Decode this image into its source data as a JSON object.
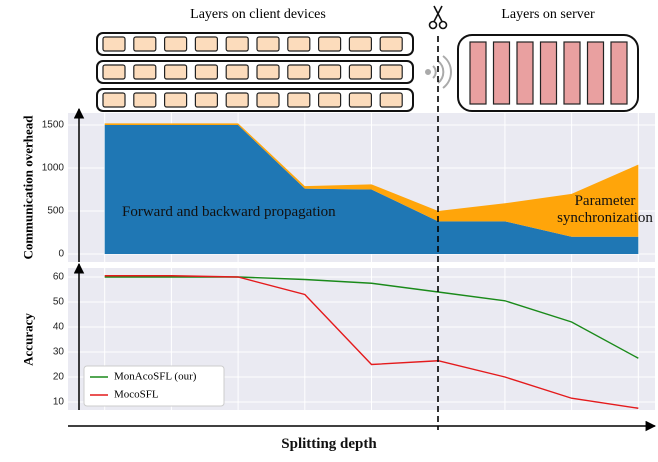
{
  "diagram": {
    "client_label": "Layers on client devices",
    "server_label": "Layers on server"
  },
  "chart_data": [
    {
      "type": "area",
      "stacked": true,
      "ylabel": "Communication overhead",
      "annotations": [
        "Forward and backward propagation",
        "Parameter synchronization"
      ],
      "x": [
        1,
        2,
        3,
        4,
        5,
        6,
        7,
        8,
        9
      ],
      "xlim": [
        0.45,
        9.25
      ],
      "ylim": [
        -93,
        1640
      ],
      "yticks": [
        0,
        500,
        1000,
        1500
      ],
      "grid": true,
      "series": [
        {
          "name": "Forward and backward propagation",
          "color": "#1f77b4",
          "values": [
            1500,
            1500,
            1500,
            760,
            750,
            380,
            380,
            200,
            200
          ]
        },
        {
          "name": "Parameter synchronization",
          "color": "#ffa50a",
          "values": [
            20,
            20,
            20,
            30,
            60,
            120,
            210,
            500,
            840
          ]
        }
      ]
    },
    {
      "type": "line",
      "ylabel": "Accuracy",
      "xlabel": "Splitting depth",
      "legend": "lower left",
      "x": [
        1,
        2,
        3,
        4,
        5,
        6,
        7,
        8,
        9
      ],
      "xlim": [
        0.45,
        9.25
      ],
      "ylim": [
        6.8,
        63.6
      ],
      "yticks": [
        10,
        20,
        30,
        40,
        50,
        60
      ],
      "grid": true,
      "series": [
        {
          "name": "MonAcoSFL (our)",
          "color": "#1a8a1a",
          "values": [
            60,
            60,
            60,
            59,
            57.5,
            54,
            50.5,
            42,
            27.5
          ]
        },
        {
          "name": "MocoSFL",
          "color": "#e41a1c",
          "values": [
            60.5,
            60.5,
            60,
            53,
            25,
            26.5,
            20,
            11.5,
            7.5
          ]
        }
      ]
    }
  ]
}
